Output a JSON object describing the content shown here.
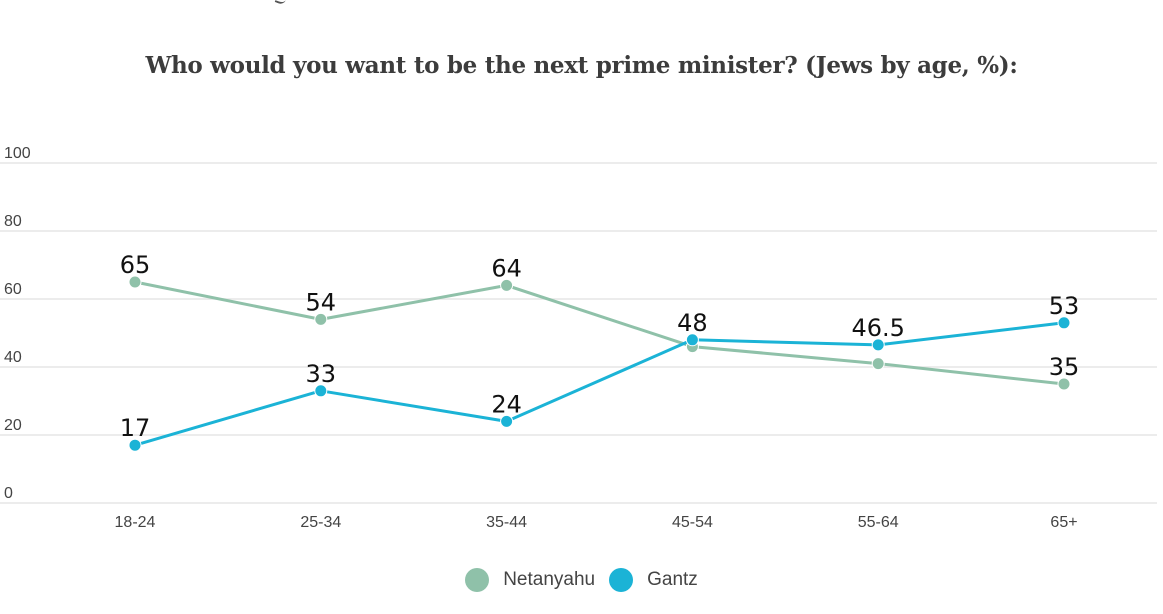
{
  "chart_data": {
    "type": "line",
    "title": "Who would you want to be the next prime minister? (Jews by age, %):",
    "xlabel": "",
    "ylabel": "",
    "categories": [
      "18-24",
      "25-34",
      "35-44",
      "45-54",
      "55-64",
      "65+"
    ],
    "ylim": [
      0,
      100
    ],
    "yticks": [
      0,
      20,
      40,
      60,
      80,
      100
    ],
    "grid": true,
    "legend_position": "bottom",
    "series": [
      {
        "name": "Netanyahu",
        "color": "#8fc1a9",
        "values": [
          65,
          54,
          64,
          46,
          41,
          35
        ],
        "labels": [
          "65",
          "54",
          "64",
          "",
          "",
          "35"
        ]
      },
      {
        "name": "Gantz",
        "color": "#1bb3d6",
        "values": [
          17,
          33,
          24,
          48,
          46.5,
          53
        ],
        "labels": [
          "17",
          "33",
          "24",
          "48",
          "46.5",
          "53"
        ]
      }
    ]
  }
}
